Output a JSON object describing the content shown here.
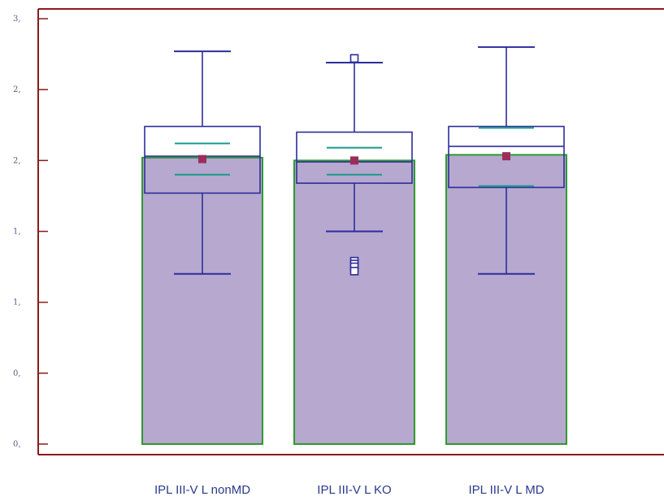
{
  "chart_data": {
    "type": "bar",
    "overlay": "boxplot",
    "categories": [
      "IPL III-V L nonMD",
      "IPL III-V L KO",
      "IPL III-V  L MD"
    ],
    "y_tick_labels": [
      "0,",
      "0,",
      "1,",
      "1,",
      "2,",
      "2,",
      "3,"
    ],
    "y_ticks": [
      0.0,
      0.5,
      1.0,
      1.5,
      2.0,
      2.5,
      3.0
    ],
    "ylim": [
      0.0,
      3.0
    ],
    "values": [
      2.02,
      2.0,
      2.04
    ],
    "boxes": [
      {
        "whisker_low": 1.2,
        "q1": 1.77,
        "median": 2.03,
        "q3": 2.24,
        "whisker_high": 2.77,
        "mean": 2.01,
        "ci_low": 1.9,
        "ci_high": 2.12,
        "outliers": []
      },
      {
        "whisker_low": 1.5,
        "q1": 1.84,
        "median": 1.99,
        "q3": 2.2,
        "whisker_high": 2.69,
        "mean": 2.0,
        "ci_low": 1.9,
        "ci_high": 2.09,
        "outliers": [
          2.72,
          1.29,
          1.27,
          1.25,
          1.22
        ]
      },
      {
        "whisker_low": 1.2,
        "q1": 1.81,
        "median": 2.1,
        "q3": 2.24,
        "whisker_high": 2.8,
        "mean": 2.03,
        "ci_low": 1.82,
        "ci_high": 2.23,
        "outliers": []
      }
    ],
    "grid": false,
    "colors": {
      "axis": "#8b1a1a",
      "bar_fill": "#b6a8cf",
      "bar_edge": "#2e9a2e",
      "box": "#2d2d9c",
      "ci": "#1a9a8a",
      "mean_marker": "#9c2d5a",
      "outlier": "#2d2d9c"
    }
  }
}
